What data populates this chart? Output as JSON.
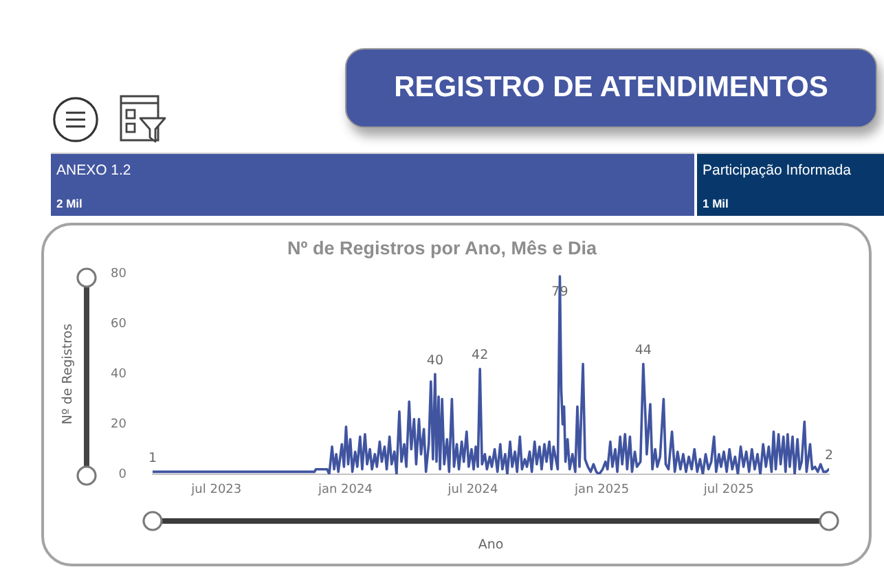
{
  "chart_data": [
    {
      "type": "other",
      "title": "REGISTRO DE ATENDIMENTOS",
      "annotations": [
        "ANEXO 1.2",
        "2 Mil",
        "Participação Informada",
        "1 Mil"
      ]
    },
    {
      "type": "line",
      "title": "Nº de Registros por Ano, Mês e Dia",
      "xlabel": "Ano",
      "ylabel": "Nº de Registros",
      "color": "#4054a0",
      "x": [
        "2023-04-01",
        "2023-11-18",
        "2023-11-20",
        "2023-12-06",
        "2023-12-09",
        "2023-12-13",
        "2023-12-16",
        "2023-12-19",
        "2023-12-22",
        "2023-12-27",
        "2023-12-30",
        "2024-01-02",
        "2024-01-05",
        "2024-01-08",
        "2024-01-11",
        "2024-01-15",
        "2024-01-18",
        "2024-01-22",
        "2024-01-25",
        "2024-01-29",
        "2024-02-01",
        "2024-02-05",
        "2024-02-08",
        "2024-02-12",
        "2024-02-15",
        "2024-02-19",
        "2024-02-22",
        "2024-02-26",
        "2024-02-29",
        "2024-03-04",
        "2024-03-07",
        "2024-03-11",
        "2024-03-14",
        "2024-03-18",
        "2024-03-21",
        "2024-03-25",
        "2024-03-28",
        "2024-04-01",
        "2024-04-04",
        "2024-04-08",
        "2024-04-11",
        "2024-04-15",
        "2024-04-18",
        "2024-04-22",
        "2024-04-25",
        "2024-04-29",
        "2024-05-02",
        "2024-05-05",
        "2024-05-08",
        "2024-05-10",
        "2024-05-13",
        "2024-05-15",
        "2024-05-18",
        "2024-05-21",
        "2024-05-25",
        "2024-05-28",
        "2024-06-01",
        "2024-06-04",
        "2024-06-08",
        "2024-06-11",
        "2024-06-15",
        "2024-06-18",
        "2024-06-22",
        "2024-06-25",
        "2024-06-29",
        "2024-07-02",
        "2024-07-05",
        "2024-07-08",
        "2024-07-11",
        "2024-07-14",
        "2024-07-18",
        "2024-07-21",
        "2024-07-25",
        "2024-07-28",
        "2024-08-01",
        "2024-08-05",
        "2024-08-09",
        "2024-08-12",
        "2024-08-16",
        "2024-08-19",
        "2024-08-23",
        "2024-08-26",
        "2024-08-30",
        "2024-09-02",
        "2024-09-06",
        "2024-09-09",
        "2024-09-13",
        "2024-09-16",
        "2024-09-20",
        "2024-09-23",
        "2024-09-27",
        "2024-09-30",
        "2024-10-04",
        "2024-10-07",
        "2024-10-11",
        "2024-10-14",
        "2024-10-18",
        "2024-10-21",
        "2024-10-24",
        "2024-10-30",
        "2024-11-02",
        "2024-11-04",
        "2024-11-06",
        "2024-11-08",
        "2024-11-10",
        "2024-11-13",
        "2024-11-16",
        "2024-11-20",
        "2024-11-24",
        "2024-11-27",
        "2024-11-30",
        "2024-12-05",
        "2024-12-08",
        "2024-12-12",
        "2024-12-16",
        "2024-12-20",
        "2024-12-24",
        "2024-12-28",
        "2025-01-02",
        "2025-01-06",
        "2025-01-09",
        "2025-01-13",
        "2025-01-16",
        "2025-01-20",
        "2025-01-23",
        "2025-01-27",
        "2025-01-30",
        "2025-02-03",
        "2025-02-06",
        "2025-02-10",
        "2025-02-13",
        "2025-02-17",
        "2025-02-20",
        "2025-02-25",
        "2025-03-01",
        "2025-03-04",
        "2025-03-06",
        "2025-03-11",
        "2025-03-14",
        "2025-03-18",
        "2025-03-21",
        "2025-03-25",
        "2025-03-30",
        "2025-04-02",
        "2025-04-06",
        "2025-04-11",
        "2025-04-15",
        "2025-04-19",
        "2025-04-23",
        "2025-04-27",
        "2025-05-01",
        "2025-05-05",
        "2025-05-09",
        "2025-05-13",
        "2025-05-17",
        "2025-05-21",
        "2025-05-25",
        "2025-05-29",
        "2025-06-02",
        "2025-06-06",
        "2025-06-10",
        "2025-06-13",
        "2025-06-17",
        "2025-06-20",
        "2025-06-24",
        "2025-06-28",
        "2025-07-02",
        "2025-07-06",
        "2025-07-10",
        "2025-07-14",
        "2025-07-18",
        "2025-07-22",
        "2025-07-26",
        "2025-07-30",
        "2025-08-03",
        "2025-08-07",
        "2025-08-11",
        "2025-08-15",
        "2025-08-19",
        "2025-08-23",
        "2025-08-27",
        "2025-08-31",
        "2025-09-03",
        "2025-09-06",
        "2025-09-10",
        "2025-09-13",
        "2025-09-17",
        "2025-09-20",
        "2025-09-23",
        "2025-09-26",
        "2025-09-30",
        "2025-10-03",
        "2025-10-07",
        "2025-10-10",
        "2025-10-13",
        "2025-10-17",
        "2025-10-20",
        "2025-10-25",
        "2025-10-28",
        "2025-11-01",
        "2025-11-05",
        "2025-11-09",
        "2025-11-13",
        "2025-11-17",
        "2025-11-21"
      ],
      "values": [
        1,
        1,
        2,
        2,
        0,
        11,
        2,
        8,
        1,
        12,
        3,
        19,
        4,
        14,
        1,
        9,
        3,
        15,
        2,
        16,
        4,
        10,
        2,
        8,
        3,
        13,
        5,
        11,
        2,
        15,
        4,
        9,
        0,
        25,
        5,
        12,
        3,
        29,
        10,
        22,
        4,
        22,
        8,
        18,
        1,
        12,
        37,
        6,
        40,
        5,
        31,
        2,
        30,
        4,
        14,
        1,
        30,
        3,
        12,
        2,
        13,
        5,
        17,
        3,
        10,
        2,
        11,
        3,
        42,
        4,
        8,
        2,
        7,
        3,
        10,
        1,
        12,
        2,
        8,
        0,
        13,
        3,
        9,
        1,
        15,
        2,
        6,
        3,
        9,
        1,
        13,
        4,
        11,
        2,
        12,
        5,
        13,
        2,
        11,
        2,
        79,
        34,
        20,
        27,
        5,
        14,
        2,
        8,
        1,
        27,
        3,
        44,
        6,
        3,
        1,
        4,
        1,
        0,
        2,
        5,
        2,
        13,
        3,
        10,
        1,
        15,
        4,
        16,
        2,
        15,
        1,
        9,
        3,
        5,
        44,
        24,
        8,
        28,
        2,
        10,
        3,
        7,
        30,
        4,
        2,
        17,
        1,
        9,
        2,
        8,
        1,
        7,
        2,
        10,
        1,
        6,
        0,
        8,
        2,
        5,
        15,
        1,
        8,
        3,
        9,
        1,
        10,
        2,
        7,
        0,
        11,
        3,
        9,
        1,
        10,
        2,
        8,
        0,
        12,
        3,
        11,
        1,
        17,
        2,
        16,
        4,
        15,
        1,
        16,
        3,
        15,
        0,
        14,
        2,
        5,
        21,
        1,
        12,
        2,
        3,
        1,
        4,
        1,
        1,
        2
      ],
      "value_labels": [
        "1",
        null,
        null,
        null,
        null,
        null,
        null,
        null,
        null,
        null,
        null,
        null,
        null,
        null,
        null,
        null,
        null,
        null,
        null,
        null,
        null,
        null,
        null,
        null,
        null,
        null,
        null,
        null,
        null,
        null,
        null,
        null,
        null,
        null,
        null,
        null,
        null,
        null,
        null,
        null,
        null,
        null,
        null,
        null,
        null,
        null,
        null,
        null,
        "40",
        null,
        null,
        null,
        null,
        null,
        null,
        null,
        null,
        null,
        null,
        null,
        null,
        null,
        null,
        null,
        null,
        null,
        null,
        null,
        "42",
        null,
        null,
        null,
        null,
        null,
        null,
        null,
        null,
        null,
        null,
        null,
        null,
        null,
        null,
        null,
        null,
        null,
        null,
        null,
        null,
        null,
        null,
        null,
        null,
        null,
        null,
        null,
        null,
        null,
        null,
        null,
        "79",
        null,
        null,
        null,
        null,
        null,
        null,
        null,
        null,
        null,
        null,
        null,
        null,
        null,
        null,
        null,
        null,
        null,
        null,
        null,
        null,
        null,
        null,
        null,
        null,
        null,
        null,
        null,
        null,
        null,
        null,
        null,
        null,
        null,
        "44",
        null,
        null,
        null,
        null,
        null,
        null,
        null,
        null,
        null,
        null,
        null,
        null,
        null,
        null,
        null,
        null,
        null,
        null,
        null,
        null,
        null,
        null,
        null,
        null,
        null,
        null,
        null,
        null,
        null,
        null,
        null,
        null,
        null,
        null,
        null,
        null,
        null,
        null,
        null,
        null,
        null,
        null,
        null,
        null,
        null,
        null,
        null,
        null,
        null,
        null,
        null,
        null,
        null,
        null,
        null,
        null,
        null,
        null,
        null,
        null,
        null,
        null,
        null,
        null,
        null,
        null,
        null,
        null,
        null,
        "2"
      ],
      "xlim": [
        "2023-04-01",
        "2025-11-21"
      ],
      "xticks": [
        {
          "value": "2023-07-01",
          "label": "jul 2023"
        },
        {
          "value": "2024-01-01",
          "label": "jan 2024"
        },
        {
          "value": "2024-07-01",
          "label": "jul 2024"
        },
        {
          "value": "2025-01-01",
          "label": "jan 2025"
        },
        {
          "value": "2025-07-01",
          "label": "jul 2025"
        }
      ],
      "ylim": [
        0,
        80
      ],
      "yticks": [
        0,
        20,
        40,
        60,
        80
      ]
    }
  ]
}
